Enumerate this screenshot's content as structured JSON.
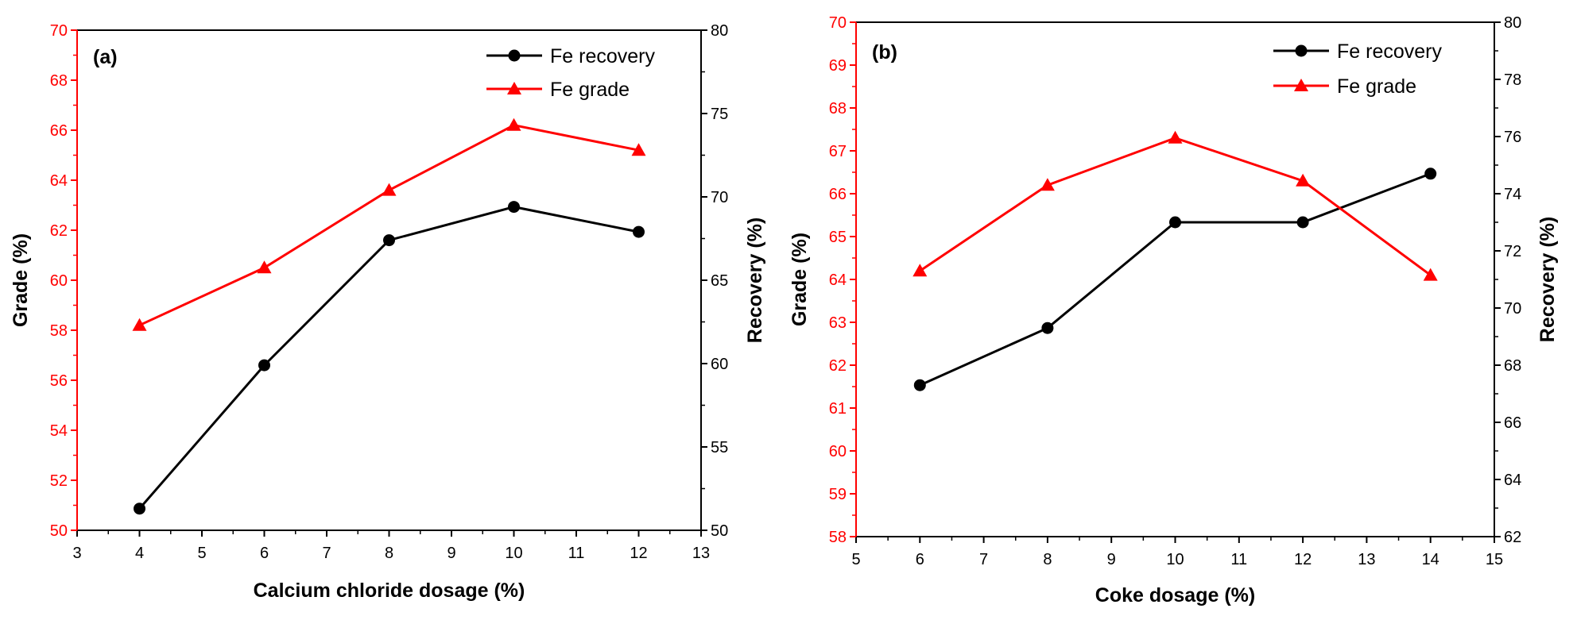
{
  "chart_data": [
    {
      "type": "line",
      "panel_label": "(a)",
      "xlabel": "Calcium chloride dosage  (%)",
      "ylabel_left": "Grade (%)",
      "ylabel_right": "Recovery (%)",
      "xlim": [
        3,
        13
      ],
      "xticks": [
        "3",
        "4",
        "5",
        "6",
        "7",
        "8",
        "9",
        "10",
        "11",
        "12",
        "13"
      ],
      "ylim_left": [
        50,
        70
      ],
      "yticks_left": [
        "50",
        "52",
        "54",
        "56",
        "58",
        "60",
        "62",
        "64",
        "66",
        "68",
        "70"
      ],
      "ylim_right": [
        50,
        80
      ],
      "yticks_right": [
        "50",
        "55",
        "60",
        "65",
        "70",
        "75",
        "80"
      ],
      "legend_position": "top-right",
      "left_axis_color": "#ff0000",
      "right_axis_color": "#000000",
      "series": [
        {
          "name": "Fe recovery",
          "axis": "right",
          "color": "#000000",
          "marker": "circle",
          "x": [
            4,
            6,
            8,
            10,
            12
          ],
          "values": [
            51.3,
            59.9,
            67.4,
            69.4,
            67.9
          ]
        },
        {
          "name": "Fe grade",
          "axis": "left",
          "color": "#ff0000",
          "marker": "triangle",
          "x": [
            4,
            6,
            8,
            10,
            12
          ],
          "values": [
            58.2,
            60.5,
            63.6,
            66.2,
            65.2
          ]
        }
      ]
    },
    {
      "type": "line",
      "panel_label": "(b)",
      "xlabel": "Coke dosage (%)",
      "ylabel_left": "Grade (%)",
      "ylabel_right": "Recovery (%)",
      "xlim": [
        5,
        15
      ],
      "xticks": [
        "5",
        "6",
        "7",
        "8",
        "9",
        "10",
        "11",
        "12",
        "13",
        "14",
        "15"
      ],
      "ylim_left": [
        58,
        70
      ],
      "yticks_left": [
        "58",
        "59",
        "60",
        "61",
        "62",
        "63",
        "64",
        "65",
        "66",
        "67",
        "68",
        "69",
        "70"
      ],
      "ylim_right": [
        62,
        80
      ],
      "yticks_right": [
        "62",
        "64",
        "66",
        "68",
        "70",
        "72",
        "74",
        "76",
        "78",
        "80"
      ],
      "legend_position": "top-right",
      "left_axis_color": "#ff0000",
      "right_axis_color": "#000000",
      "series": [
        {
          "name": "Fe recovery",
          "axis": "right",
          "color": "#000000",
          "marker": "circle",
          "x": [
            6,
            8,
            10,
            12,
            14
          ],
          "values": [
            67.3,
            69.3,
            73.0,
            73.0,
            74.7
          ]
        },
        {
          "name": "Fe grade",
          "axis": "left",
          "color": "#ff0000",
          "marker": "triangle",
          "x": [
            6,
            8,
            10,
            12,
            14
          ],
          "values": [
            64.2,
            66.2,
            67.3,
            66.3,
            64.1
          ]
        }
      ]
    }
  ]
}
